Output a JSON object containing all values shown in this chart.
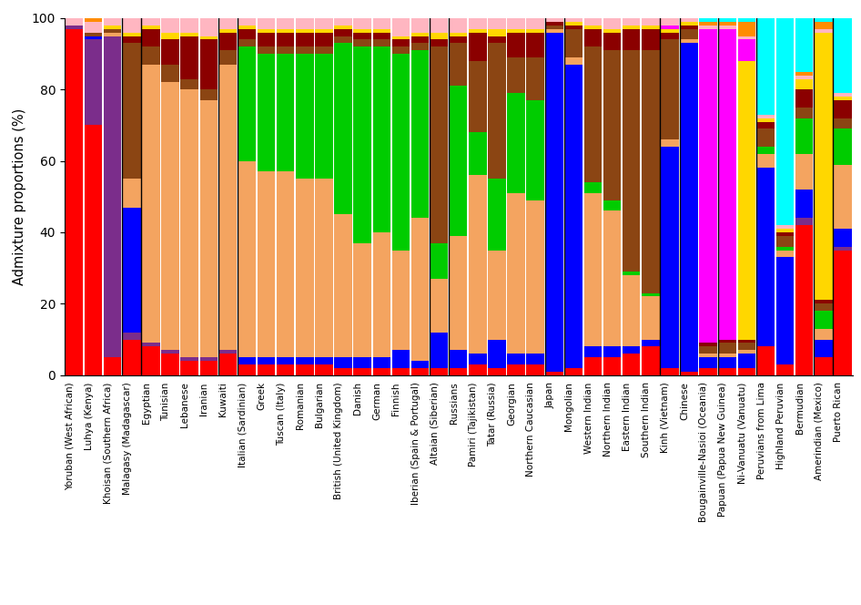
{
  "ylabel": "Admixture proportions (%)",
  "color_order": [
    "red",
    "purple",
    "blue",
    "salmon",
    "green",
    "brown",
    "darkred",
    "yellow",
    "magenta",
    "pink",
    "orange",
    "cyan"
  ],
  "color_hex": {
    "red": "#FF0000",
    "purple": "#7B2D8B",
    "blue": "#0000FF",
    "salmon": "#F4A460",
    "green": "#00CC00",
    "brown": "#8B4513",
    "darkred": "#8B0000",
    "yellow": "#FFD700",
    "magenta": "#FF00FF",
    "pink": "#FFB6C1",
    "orange": "#FF8C00",
    "cyan": "#00FFFF"
  },
  "populations": [
    "Yoruban (West African)",
    "Luhya (Kenya)",
    "Khoisan (Southern Africa)",
    "Malagasy (Madagascar)",
    "Egyptian",
    "Tunisian",
    "Lebanese",
    "Iranian",
    "Kuwaiti",
    "Italian (Sardinian)",
    "Greek",
    "Tuscan (Italy)",
    "Romanian",
    "Bulgarian",
    "British (United Kingdom)",
    "Danish",
    "German",
    "Finnish",
    "Iberian (Spain & Portugal)",
    "Altaian (Siberian)",
    "Russians",
    "Pamiri (Tajikistan)",
    "Tatar (Russia)",
    "Georgian",
    "Northern Caucasian",
    "Japan",
    "Mongolian",
    "Western Indian",
    "Northern Indian",
    "Eastern Indian",
    "Southern Indian",
    "Kinh (Vietnam)",
    "Chinese",
    "Bougainville-Nasioi (Oceania)",
    "Papuan (Papua New Guinea)",
    "Ni-Vanuatu (Vanuatu)",
    "Peruvians from Lima",
    "Highland Peruvian",
    "Bermudian",
    "Amerindian (Mexico)",
    "Puerto Rican"
  ],
  "admixture": [
    [
      97,
      1,
      0,
      0,
      0,
      0,
      0,
      0,
      0,
      2,
      0,
      0
    ],
    [
      70,
      24,
      1,
      0,
      0,
      1,
      0,
      0,
      0,
      3,
      1,
      0
    ],
    [
      5,
      90,
      0,
      1,
      0,
      1,
      0,
      1,
      0,
      2,
      0,
      0
    ],
    [
      10,
      2,
      35,
      8,
      0,
      38,
      2,
      1,
      0,
      4,
      0,
      0
    ],
    [
      8,
      1,
      0,
      78,
      0,
      5,
      5,
      1,
      0,
      2,
      0,
      0
    ],
    [
      6,
      1,
      0,
      75,
      0,
      5,
      7,
      2,
      0,
      4,
      0,
      0
    ],
    [
      4,
      1,
      0,
      75,
      0,
      3,
      12,
      1,
      0,
      4,
      0,
      0
    ],
    [
      4,
      1,
      0,
      72,
      0,
      3,
      14,
      1,
      0,
      5,
      0,
      0
    ],
    [
      6,
      1,
      0,
      80,
      0,
      4,
      5,
      1,
      0,
      3,
      0,
      0
    ],
    [
      3,
      0,
      2,
      55,
      32,
      2,
      3,
      1,
      0,
      2,
      0,
      0
    ],
    [
      3,
      0,
      2,
      52,
      33,
      2,
      4,
      1,
      0,
      3,
      0,
      0
    ],
    [
      3,
      0,
      2,
      52,
      33,
      2,
      4,
      1,
      0,
      3,
      0,
      0
    ],
    [
      3,
      0,
      2,
      50,
      35,
      2,
      4,
      1,
      0,
      3,
      0,
      0
    ],
    [
      3,
      0,
      2,
      50,
      35,
      2,
      4,
      1,
      0,
      3,
      0,
      0
    ],
    [
      2,
      0,
      3,
      40,
      48,
      2,
      2,
      1,
      0,
      2,
      0,
      0
    ],
    [
      2,
      0,
      3,
      32,
      55,
      2,
      2,
      1,
      0,
      3,
      0,
      0
    ],
    [
      2,
      0,
      3,
      35,
      52,
      2,
      2,
      1,
      0,
      3,
      0,
      0
    ],
    [
      2,
      0,
      5,
      28,
      55,
      2,
      2,
      1,
      0,
      5,
      0,
      0
    ],
    [
      2,
      0,
      2,
      40,
      47,
      2,
      2,
      1,
      0,
      4,
      0,
      0
    ],
    [
      2,
      0,
      10,
      15,
      10,
      55,
      2,
      2,
      0,
      4,
      0,
      0
    ],
    [
      2,
      0,
      5,
      32,
      42,
      12,
      2,
      1,
      0,
      4,
      0,
      0
    ],
    [
      3,
      0,
      3,
      50,
      12,
      20,
      8,
      1,
      0,
      3,
      0,
      0
    ],
    [
      2,
      0,
      8,
      25,
      20,
      38,
      2,
      2,
      0,
      3,
      0,
      0
    ],
    [
      3,
      0,
      3,
      45,
      28,
      10,
      7,
      1,
      0,
      3,
      0,
      0
    ],
    [
      3,
      0,
      3,
      43,
      28,
      12,
      7,
      1,
      0,
      3,
      0,
      0
    ],
    [
      1,
      0,
      95,
      1,
      0,
      1,
      1,
      0,
      0,
      1,
      0,
      0
    ],
    [
      2,
      0,
      85,
      2,
      0,
      8,
      1,
      1,
      0,
      1,
      0,
      0
    ],
    [
      5,
      0,
      3,
      43,
      3,
      38,
      5,
      1,
      0,
      2,
      0,
      0
    ],
    [
      5,
      0,
      3,
      38,
      3,
      42,
      5,
      1,
      0,
      3,
      0,
      0
    ],
    [
      6,
      0,
      2,
      20,
      1,
      62,
      6,
      1,
      0,
      2,
      0,
      0
    ],
    [
      8,
      0,
      2,
      12,
      1,
      68,
      6,
      1,
      0,
      2,
      0,
      0
    ],
    [
      2,
      0,
      62,
      2,
      0,
      28,
      2,
      1,
      1,
      2,
      0,
      0
    ],
    [
      1,
      0,
      92,
      1,
      0,
      3,
      1,
      1,
      0,
      1,
      0,
      0
    ],
    [
      2,
      0,
      3,
      1,
      0,
      2,
      1,
      0,
      88,
      1,
      1,
      1
    ],
    [
      2,
      0,
      3,
      1,
      0,
      3,
      1,
      0,
      87,
      1,
      1,
      1
    ],
    [
      2,
      0,
      4,
      1,
      0,
      2,
      1,
      78,
      6,
      1,
      4,
      1
    ],
    [
      8,
      0,
      50,
      4,
      2,
      5,
      2,
      1,
      0,
      1,
      0,
      27
    ],
    [
      3,
      0,
      30,
      2,
      1,
      3,
      1,
      1,
      0,
      1,
      0,
      58
    ],
    [
      42,
      2,
      8,
      10,
      10,
      3,
      5,
      3,
      0,
      1,
      1,
      15
    ],
    [
      5,
      0,
      5,
      3,
      5,
      2,
      1,
      75,
      0,
      1,
      2,
      1
    ],
    [
      35,
      1,
      5,
      18,
      10,
      3,
      5,
      1,
      0,
      1,
      0,
      21
    ]
  ],
  "group_separators": [
    2.5,
    3.5,
    7.5,
    8.5,
    18.5,
    19.5,
    24.5,
    25.5,
    30.5,
    31.5,
    33.5,
    35.5,
    38.5,
    39.5
  ]
}
